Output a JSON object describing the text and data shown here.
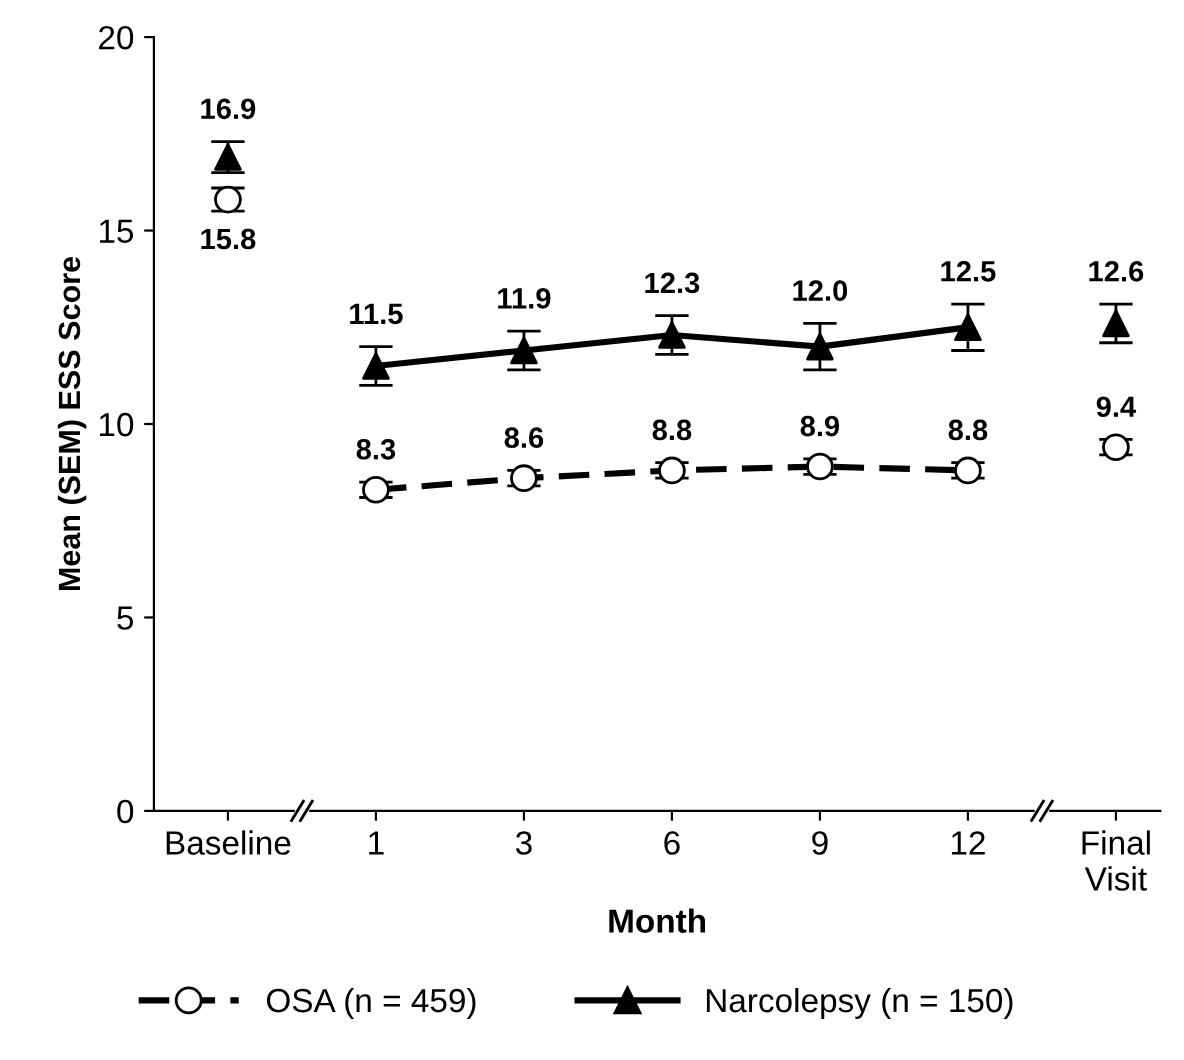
{
  "chart_data": {
    "type": "line",
    "categories": [
      "Baseline",
      "1",
      "3",
      "6",
      "9",
      "12",
      "Final\nVisit"
    ],
    "xlabel": "Month",
    "ylabel": "Mean (SEM) ESS Score",
    "ylim": [
      0,
      20
    ],
    "yticks": [
      0,
      5,
      10,
      15,
      20
    ],
    "series": [
      {
        "name": "OSA (n = 459)",
        "color": "#000000",
        "line_style": "dashed",
        "marker": "circle",
        "values": [
          null,
          8.3,
          8.6,
          8.8,
          8.9,
          8.8,
          null
        ],
        "errors": [
          null,
          0.2,
          0.2,
          0.2,
          0.2,
          0.2,
          null
        ],
        "value_labels": [
          null,
          "8.3",
          "8.6",
          "8.8",
          "8.9",
          "8.8",
          null
        ]
      },
      {
        "name": "Narcolepsy (n = 150)",
        "color": "#000000",
        "line_style": "solid",
        "marker": "triangle",
        "values": [
          null,
          11.5,
          11.9,
          12.3,
          12.0,
          12.5,
          null
        ],
        "errors": [
          null,
          0.5,
          0.5,
          0.5,
          0.6,
          0.6,
          null
        ],
        "value_labels": [
          null,
          "11.5",
          "11.9",
          "12.3",
          "12.0",
          "12.5",
          null
        ]
      },
      {
        "color": "#000000",
        "type": "scatter",
        "marker": "circle",
        "values": [
          15.8,
          null,
          null,
          null,
          null,
          null,
          9.4
        ],
        "errors": [
          0.3,
          null,
          null,
          null,
          null,
          null,
          0.2
        ],
        "value_labels": [
          "15.8",
          null,
          null,
          null,
          null,
          null,
          "9.4"
        ]
      },
      {
        "color": "#000000",
        "type": "scatter",
        "marker": "triangle",
        "values": [
          16.9,
          null,
          null,
          null,
          null,
          null,
          12.6
        ],
        "errors": [
          0.4,
          null,
          null,
          null,
          null,
          null,
          0.5
        ],
        "value_labels": [
          "16.9",
          null,
          null,
          null,
          null,
          null,
          "12.6"
        ]
      }
    ],
    "grid": false,
    "legend": "bottom"
  }
}
